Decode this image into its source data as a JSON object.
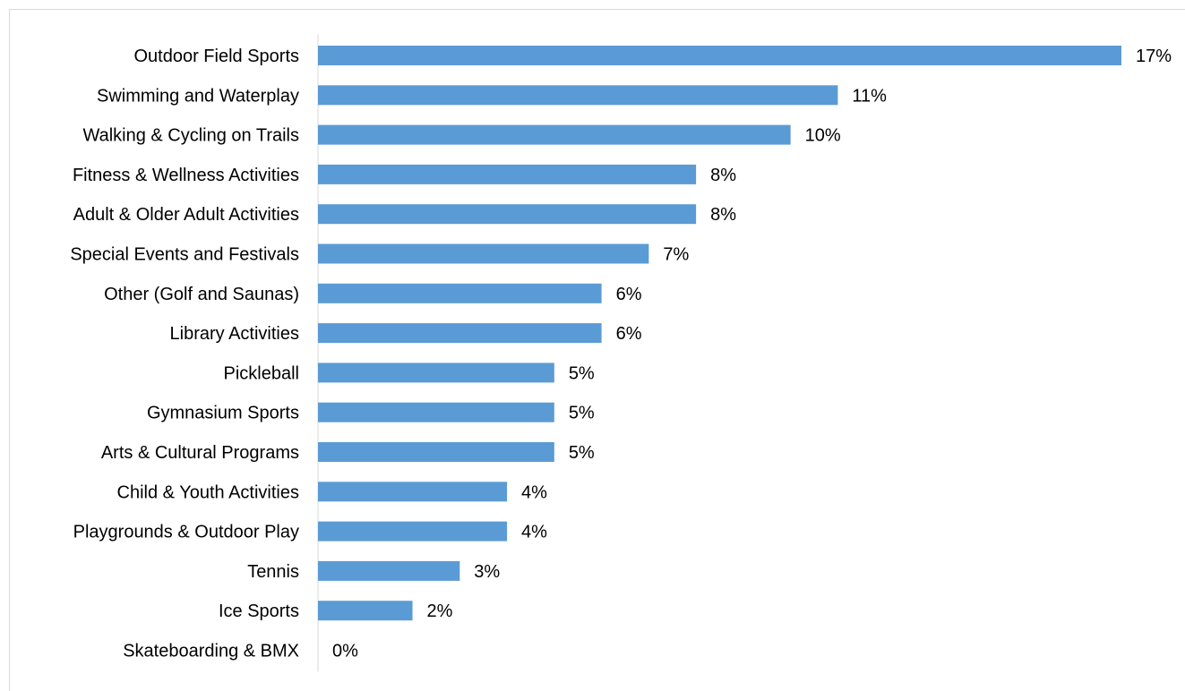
{
  "chart_data": {
    "type": "bar",
    "orientation": "horizontal",
    "title": "",
    "xlabel": "",
    "ylabel": "",
    "categories": [
      "Outdoor Field Sports",
      "Swimming and Waterplay",
      "Walking & Cycling on Trails",
      "Fitness & Wellness Activities",
      "Adult & Older Adult Activities",
      "Special Events and Festivals",
      "Other (Golf and Saunas)",
      "Library Activities",
      "Pickleball",
      "Gymnasium Sports",
      "Arts & Cultural Programs",
      "Child & Youth Activities",
      "Playgrounds & Outdoor Play",
      "Tennis",
      "Ice Sports",
      "Skateboarding & BMX"
    ],
    "values": [
      17,
      11,
      10,
      8,
      8,
      7,
      6,
      6,
      5,
      5,
      5,
      4,
      4,
      3,
      2,
      0
    ],
    "value_labels": [
      "17%",
      "11%",
      "10%",
      "8%",
      "8%",
      "7%",
      "6%",
      "6%",
      "5%",
      "5%",
      "5%",
      "4%",
      "4%",
      "3%",
      "2%",
      "0%"
    ],
    "xlim": [
      0,
      17
    ],
    "grid": false,
    "legend": "none",
    "bar_color": "#5b9bd5",
    "axis_color": "#d9d9d9"
  }
}
